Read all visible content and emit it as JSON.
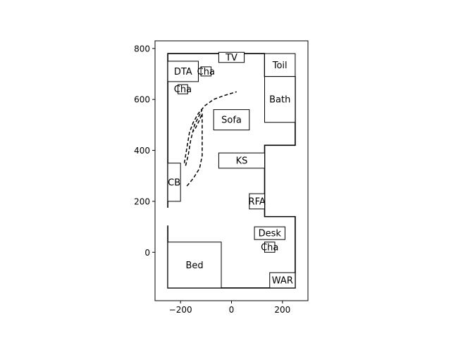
{
  "chart_data": {
    "type": "floorplan",
    "title": "",
    "xlabel": "",
    "ylabel": "",
    "xlim": [
      -300,
      300
    ],
    "ylim": [
      -190,
      830
    ],
    "x_ticks": [
      -200,
      0,
      200
    ],
    "y_ticks": [
      0,
      200,
      400,
      600,
      800
    ],
    "grid": false,
    "walls": [
      [
        [
          -250,
          175
        ],
        [
          -250,
          780
        ],
        [
          130,
          780
        ],
        [
          130,
          690
        ],
        [
          250,
          690
        ],
        [
          250,
          420
        ],
        [
          130,
          420
        ],
        [
          130,
          140
        ],
        [
          250,
          140
        ],
        [
          250,
          -140
        ],
        [
          -250,
          -140
        ],
        [
          -250,
          105
        ]
      ]
    ],
    "rooms": [
      {
        "label": "TV",
        "x0": -50,
        "x1": 50,
        "y0": 745,
        "y1": 785
      },
      {
        "label": "Toil",
        "x0": 130,
        "x1": 250,
        "y0": 690,
        "y1": 780
      },
      {
        "label": "DTA",
        "x0": -250,
        "x1": -130,
        "y0": 670,
        "y1": 750
      },
      {
        "label": "Cha",
        "x0": -120,
        "x1": -80,
        "y0": 692,
        "y1": 728
      },
      {
        "label": "Cha",
        "x0": -210,
        "x1": -172,
        "y0": 622,
        "y1": 658
      },
      {
        "label": "Bath",
        "x0": 130,
        "x1": 250,
        "y0": 510,
        "y1": 690
      },
      {
        "label": "Sofa",
        "x0": -70,
        "x1": 70,
        "y0": 480,
        "y1": 560
      },
      {
        "label": "KS",
        "x0": -50,
        "x1": 130,
        "y0": 330,
        "y1": 390
      },
      {
        "label": "CB",
        "x0": -250,
        "x1": -200,
        "y0": 200,
        "y1": 350
      },
      {
        "label": "RFA",
        "x0": 70,
        "x1": 130,
        "y0": 170,
        "y1": 230
      },
      {
        "label": "Desk",
        "x0": 90,
        "x1": 210,
        "y0": 50,
        "y1": 100
      },
      {
        "label": "Cha",
        "x0": 130,
        "x1": 170,
        "y0": 0,
        "y1": 40
      },
      {
        "label": "Bed",
        "x0": -250,
        "x1": -40,
        "y0": -140,
        "y1": 40
      },
      {
        "label": "WAR",
        "x0": 150,
        "x1": 250,
        "y0": -140,
        "y1": -80
      }
    ],
    "paths": [
      {
        "style": "dashed",
        "points": [
          [
            -180,
            340
          ],
          [
            -170,
            380
          ],
          [
            -160,
            440
          ],
          [
            -145,
            500
          ],
          [
            -130,
            530
          ],
          [
            -115,
            560
          ]
        ]
      },
      {
        "style": "dashed",
        "points": [
          [
            -185,
            350
          ],
          [
            -175,
            410
          ],
          [
            -165,
            470
          ],
          [
            -150,
            510
          ],
          [
            -130,
            545
          ],
          [
            -105,
            575
          ],
          [
            -70,
            600
          ],
          [
            -30,
            615
          ],
          [
            20,
            630
          ]
        ]
      },
      {
        "style": "dashed",
        "points": [
          [
            -175,
            260
          ],
          [
            -150,
            290
          ],
          [
            -125,
            330
          ],
          [
            -115,
            380
          ],
          [
            -115,
            450
          ],
          [
            -115,
            520
          ],
          [
            -115,
            545
          ],
          [
            -125,
            520
          ],
          [
            -140,
            490
          ],
          [
            -150,
            475
          ]
        ]
      }
    ]
  }
}
